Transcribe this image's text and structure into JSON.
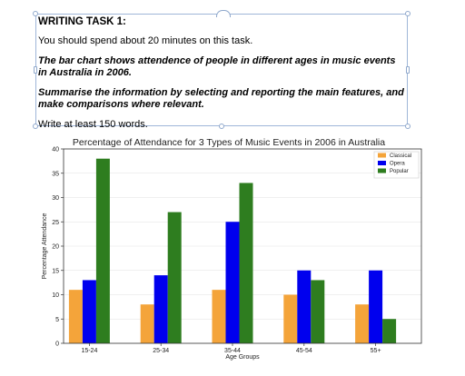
{
  "task": {
    "heading": "WRITING TASK 1:",
    "instruction": "You should spend about 20 minutes on this task.",
    "prompt": "The bar chart shows attendence of people in different ages in music events in Australia in 2006.",
    "summary_instruction": "Summarise the information by selecting and reporting the main features, and make comparisons where relevant.",
    "word_count": "Write at least 150 words."
  },
  "chart_data": {
    "type": "bar",
    "title": "Percentage of Attendance for 3 Types of Music Events in 2006 in Australia",
    "xlabel": "Age Groups",
    "ylabel": "Percentage Attendance",
    "categories": [
      "15-24",
      "25-34",
      "35-44",
      "45-54",
      "55+"
    ],
    "series": [
      {
        "name": "Classical",
        "color": "#f4a43a",
        "values": [
          11,
          8,
          11,
          10,
          8
        ]
      },
      {
        "name": "Opera",
        "color": "#0000ee",
        "values": [
          13,
          14,
          25,
          15,
          15
        ]
      },
      {
        "name": "Popular",
        "color": "#2e7d1f",
        "values": [
          38,
          27,
          33,
          13,
          5
        ]
      }
    ],
    "ylim": [
      0,
      40
    ],
    "yticks": [
      "0",
      "5",
      "10",
      "15",
      "20",
      "25",
      "30",
      "35",
      "40"
    ],
    "grid": true,
    "legend_position": "top-right"
  }
}
